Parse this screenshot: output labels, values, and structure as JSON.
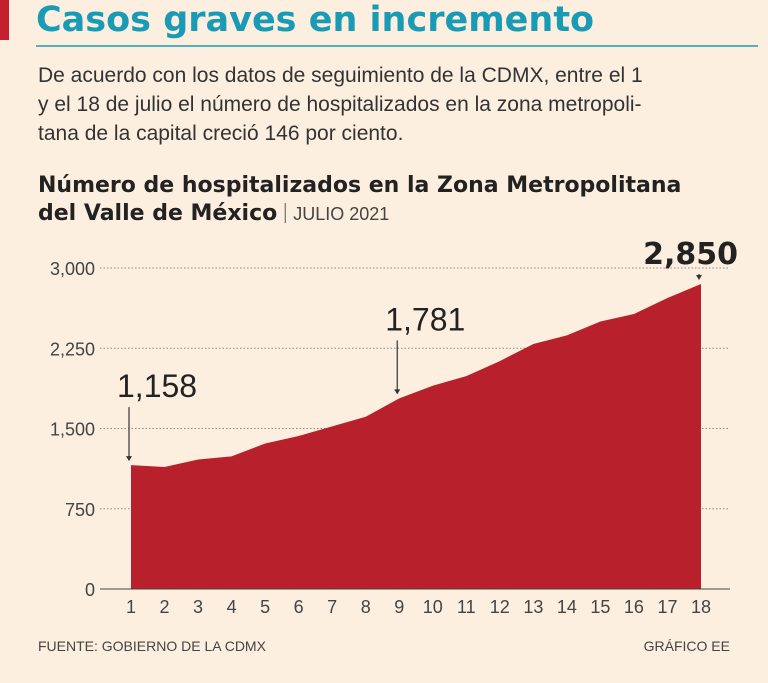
{
  "chart_data": {
    "type": "area",
    "headline": "Casos graves en incremento",
    "description": [
      "De acuerdo con los datos de seguimiento de la CDMX, entre el 1",
      "y el 18 de julio el número de hospitalizados en la zona metropoli-",
      "tana de la capital creció 146 por ciento."
    ],
    "title": [
      "Número de hospitalizados en la Zona Metropolitana",
      "del Valle de México"
    ],
    "period": "JULIO 2021",
    "categories": [
      "1",
      "2",
      "3",
      "4",
      "5",
      "6",
      "7",
      "8",
      "9",
      "10",
      "11",
      "12",
      "13",
      "14",
      "15",
      "16",
      "17",
      "18"
    ],
    "values": [
      1158,
      1140,
      1210,
      1240,
      1360,
      1430,
      1520,
      1610,
      1781,
      1900,
      1990,
      2130,
      2290,
      2370,
      2500,
      2570,
      2720,
      2850
    ],
    "value_labels": [
      "1,158",
      null,
      null,
      null,
      null,
      null,
      null,
      null,
      "1,781",
      null,
      null,
      null,
      null,
      null,
      null,
      null,
      null,
      "2,850"
    ],
    "color": "#b8202b",
    "ylim": [
      0,
      3000
    ],
    "yticks": [
      0,
      750,
      {
        "value": 1500,
        "label": "1,500"
      },
      {
        "value": 2250,
        "label": "2,250"
      },
      {
        "value": 3000,
        "label": "3,000"
      }
    ],
    "grid": true,
    "source": "FUENTE: GOBIERNO DE LA CDMX",
    "credit": "GRÁFICO EE"
  }
}
